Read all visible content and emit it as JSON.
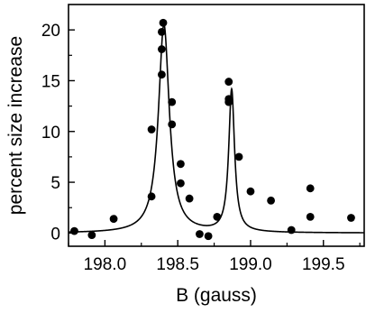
{
  "chart_data": {
    "type": "scatter",
    "title": "",
    "xlabel": "B (gauss)",
    "ylabel": "percent size increase",
    "xlim": [
      197.75,
      199.78
    ],
    "ylim": [
      -1.3,
      22.5
    ],
    "x_ticks": [
      198.0,
      198.5,
      199.0,
      199.5
    ],
    "x_tick_labels": [
      "198.0",
      "198.5",
      "199.0",
      "199.5"
    ],
    "y_ticks": [
      0,
      5,
      10,
      15,
      20
    ],
    "y_tick_labels": [
      "0",
      "5",
      "10",
      "15",
      "20"
    ],
    "grid": false,
    "legend": "none",
    "series": [
      {
        "kind": "scatter",
        "points": [
          [
            197.79,
            0.2
          ],
          [
            197.91,
            -0.2
          ],
          [
            198.06,
            1.4
          ],
          [
            198.32,
            3.6
          ],
          [
            198.32,
            10.2
          ],
          [
            198.39,
            15.6
          ],
          [
            198.39,
            18.1
          ],
          [
            198.39,
            19.8
          ],
          [
            198.4,
            20.7
          ],
          [
            198.46,
            12.9
          ],
          [
            198.46,
            10.7
          ],
          [
            198.52,
            6.8
          ],
          [
            198.52,
            4.9
          ],
          [
            198.58,
            3.4
          ],
          [
            198.65,
            -0.1
          ],
          [
            198.71,
            -0.3
          ],
          [
            198.77,
            1.6
          ],
          [
            198.85,
            14.9
          ],
          [
            198.85,
            13.2
          ],
          [
            198.85,
            12.9
          ],
          [
            198.92,
            7.5
          ],
          [
            199.0,
            4.1
          ],
          [
            199.14,
            3.2
          ],
          [
            199.28,
            0.3
          ],
          [
            199.41,
            4.4
          ],
          [
            199.41,
            1.6
          ],
          [
            199.69,
            1.5
          ]
        ]
      },
      {
        "kind": "line",
        "description": "fit curve: two Lorentzian resonances",
        "peaks": [
          {
            "center": 198.405,
            "amplitude": 20.5,
            "hwhm": 0.045
          },
          {
            "center": 198.87,
            "amplitude": 14.0,
            "hwhm": 0.024
          }
        ],
        "baseline": 0.0
      }
    ]
  }
}
